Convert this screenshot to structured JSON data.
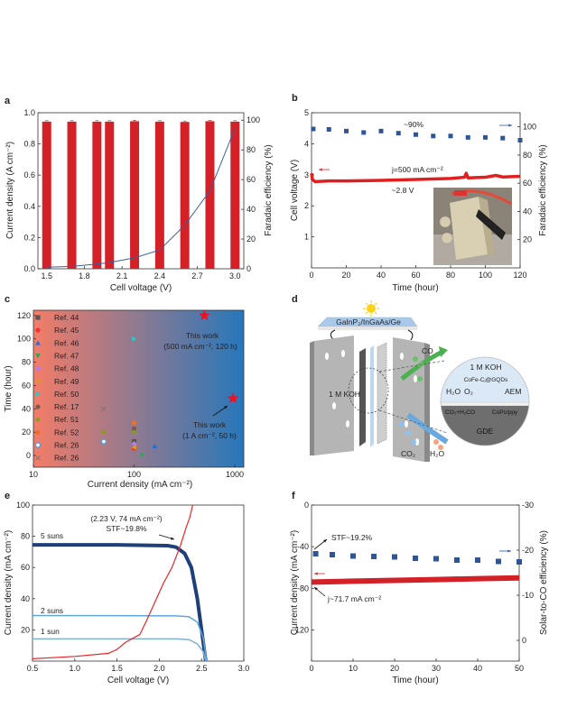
{
  "panels": {
    "a": "a",
    "b": "b",
    "c": "c",
    "d": "d",
    "e": "e",
    "f": "f"
  },
  "chart_data": [
    {
      "panel": "a",
      "type": "bar+line",
      "xlabel": "Cell voltage (V)",
      "ylabel": "Current density (A cm⁻²)",
      "y2label": "Faradaic efficiency (%)",
      "xlim": [
        1.43,
        3.07
      ],
      "ylim": [
        0,
        1.0
      ],
      "y2lim": [
        0,
        105
      ],
      "xticks": [
        "1.5",
        "1.8",
        "2.1",
        "2.4",
        "2.7",
        "3.0"
      ],
      "yticks": [
        "0.0",
        "0.2",
        "0.4",
        "0.6",
        "0.8",
        "1.0"
      ],
      "y2ticks": [
        "0",
        "20",
        "40",
        "60",
        "80",
        "100"
      ],
      "bars": {
        "axis": "right",
        "color": "#d42027",
        "x": [
          1.5,
          1.7,
          1.9,
          2.0,
          2.2,
          2.4,
          2.6,
          2.8,
          3.0
        ],
        "values": [
          99,
          99,
          99,
          99,
          99.3,
          99,
          98.8,
          99.3,
          99
        ]
      },
      "line": {
        "axis": "left",
        "color": "#3a5fa0",
        "x": [
          1.5,
          1.7,
          1.9,
          2.0,
          2.2,
          2.4,
          2.6,
          2.8,
          3.0
        ],
        "y": [
          0.01,
          0.015,
          0.03,
          0.04,
          0.07,
          0.12,
          0.28,
          0.5,
          0.9
        ]
      }
    },
    {
      "panel": "b",
      "type": "line+scatter",
      "xlabel": "Time (hour)",
      "ylabel": "Cell voltage (V)",
      "y2label": "Faradaic efficiency (%)",
      "xlim": [
        0,
        120
      ],
      "ylim": [
        0,
        5
      ],
      "y2lim": [
        0,
        110
      ],
      "xticks": [
        "0",
        "20",
        "40",
        "60",
        "80",
        "100",
        "120"
      ],
      "yticks": [
        "1",
        "2",
        "3",
        "4",
        "5"
      ],
      "y2ticks": [
        "20",
        "40",
        "60",
        "80",
        "100"
      ],
      "scatter": {
        "axis": "right",
        "color": "#2f5597",
        "x": [
          1,
          10,
          20,
          30,
          40,
          50,
          60,
          70,
          80,
          90,
          100,
          110,
          120
        ],
        "y": [
          98.5,
          98.2,
          97,
          96,
          97,
          95.5,
          94.5,
          93.5,
          93.5,
          92.5,
          92.5,
          92,
          90.5
        ]
      },
      "line": {
        "axis": "left",
        "color": "#e02020",
        "x": [
          0,
          0.5,
          2,
          10,
          20,
          40,
          60,
          80,
          88,
          89,
          90,
          100,
          106,
          110,
          120
        ],
        "y": [
          3.05,
          2.85,
          2.78,
          2.8,
          2.8,
          2.82,
          2.85,
          2.88,
          2.92,
          3.05,
          2.9,
          2.92,
          2.98,
          2.93,
          2.95
        ]
      },
      "annotations": [
        "~90%",
        "j=500 mA cm⁻²",
        "~2.8 V"
      ]
    },
    {
      "panel": "c",
      "type": "scatter",
      "xlabel": "Current density (mA cm⁻²)",
      "ylabel": "Time (hour)",
      "xscale": "log",
      "xlim": [
        10,
        1230
      ],
      "ylim": [
        -10,
        124.5
      ],
      "xticks": [
        "10",
        "100",
        "1000"
      ],
      "yticks": [
        "0",
        "20",
        "40",
        "60",
        "80",
        "100",
        "120"
      ],
      "background": {
        "left": "#f47c68",
        "right": "#2677bb"
      },
      "legend_placement": "left",
      "series": [
        {
          "name": "Ref. 44",
          "marker": "square",
          "color": "#555555",
          "x": [
            100
          ],
          "y": [
            12
          ]
        },
        {
          "name": "Ref. 45",
          "marker": "circle",
          "color": "#ee3333",
          "x": [
            100
          ],
          "y": [
            6
          ]
        },
        {
          "name": "Ref. 46",
          "marker": "triangle-up",
          "color": "#1f6fe0",
          "x": [
            160
          ],
          "y": [
            8
          ]
        },
        {
          "name": "Ref. 47",
          "marker": "triangle-down",
          "color": "#22aa55",
          "x": [
            120
          ],
          "y": [
            0
          ]
        },
        {
          "name": "Ref. 48",
          "marker": "diamond",
          "color": "#bb77ee",
          "x": [
            100
          ],
          "y": [
            10
          ]
        },
        {
          "name": "Ref. 49",
          "marker": "triangle-left",
          "color": "#d4a017",
          "x": [
            100
          ],
          "y": [
            7
          ]
        },
        {
          "name": "Ref. 50",
          "marker": "triangle-right",
          "color": "#22cccc",
          "x": [
            100
          ],
          "y": [
            100
          ]
        },
        {
          "name": "Ref. 17",
          "marker": "circle",
          "color": "#7a5a55",
          "x": [
            100
          ],
          "y": [
            23
          ]
        },
        {
          "name": "Ref. 51",
          "marker": "star",
          "color": "#889922",
          "x": [
            100,
            50
          ],
          "y": [
            20,
            20
          ]
        },
        {
          "name": "Ref. 52",
          "marker": "circle",
          "color": "#f07020",
          "x": [
            100
          ],
          "y": [
            28
          ]
        },
        {
          "name": "Ref. 26",
          "marker": "circle-open",
          "color": "#5b9bd5",
          "x": [
            50
          ],
          "y": [
            12
          ]
        },
        {
          "name": "Ref. 26",
          "marker": "x",
          "color": "#8a7070",
          "x": [
            50
          ],
          "y": [
            40
          ]
        },
        {
          "name": "This work",
          "marker": "big-star",
          "color": "#ee1122",
          "x": [
            500,
            960
          ],
          "y": [
            120,
            49
          ],
          "legend": false
        }
      ],
      "annotations": [
        "This work",
        "(500 mA cm⁻², 120 h)",
        "This work",
        "(1 A cm⁻², 50 h)"
      ]
    },
    {
      "panel": "e",
      "type": "line",
      "xlabel": "Cell voltage (V)",
      "ylabel": "Current density (mA cm⁻²)",
      "xlim": [
        0.5,
        3.0
      ],
      "ylim": [
        0,
        100
      ],
      "xticks": [
        "0.5",
        "1.0",
        "1.5",
        "2.0",
        "2.5",
        "3.0"
      ],
      "yticks": [
        "20",
        "40",
        "60",
        "80",
        "100"
      ],
      "series": [
        {
          "name": "5 suns",
          "color": "#1f3f7a",
          "width": 4,
          "x": [
            0.5,
            1.5,
            2.1,
            2.2,
            2.3,
            2.38,
            2.45,
            2.5,
            2.55
          ],
          "y": [
            74.5,
            74.5,
            74,
            73,
            69,
            60,
            40,
            20,
            0
          ]
        },
        {
          "name": "2 suns",
          "color": "#5ea7dd",
          "width": 1.5,
          "x": [
            0.5,
            2.2,
            2.35,
            2.45,
            2.52,
            2.56
          ],
          "y": [
            29.2,
            29,
            28.5,
            25,
            15,
            0
          ]
        },
        {
          "name": "1 sun",
          "color": "#7fb0d0",
          "width": 1.5,
          "x": [
            0.5,
            2.2,
            2.35,
            2.45,
            2.52,
            2.55
          ],
          "y": [
            14.2,
            14.2,
            13.8,
            11,
            6,
            0
          ]
        },
        {
          "color": "#e8262a",
          "width": 1.2,
          "x": [
            0.5,
            1.0,
            1.4,
            1.5,
            1.6,
            1.7,
            1.77,
            1.85,
            1.95,
            2.05,
            2.15,
            2.25,
            2.32,
            2.36,
            2.4
          ],
          "y": [
            1.5,
            3,
            5,
            7.5,
            12,
            15,
            17,
            26,
            38,
            50,
            60,
            74,
            86,
            92,
            101
          ]
        }
      ],
      "annotations": [
        "(2.23 V, 74 mA cm⁻²)",
        "STF~19.8%"
      ]
    },
    {
      "panel": "f",
      "type": "line+scatter",
      "xlabel": "Time (hour)",
      "ylabel": "Current density (mA cm⁻²)",
      "y2label": "Solar-to-CO efficiency (%)",
      "xlim": [
        0,
        50
      ],
      "ylim": [
        -150,
        0
      ],
      "y2lim": [
        4.6,
        -30
      ],
      "xticks": [
        "0",
        "10",
        "20",
        "30",
        "40",
        "50"
      ],
      "yticks": [
        "-120",
        "-80",
        "-40",
        "0"
      ],
      "y2ticks": [
        "0",
        "-10",
        "-20",
        "-30"
      ],
      "scatter": {
        "axis": "right",
        "color": "#2f5597",
        "x": [
          1,
          5,
          10,
          15,
          20,
          25,
          30,
          35,
          40,
          45,
          50
        ],
        "y": [
          -19.2,
          -19.0,
          -18.7,
          -18.6,
          -18.5,
          -18.2,
          -18.1,
          -17.8,
          -17.8,
          -17.5,
          -17.4
        ]
      },
      "line": {
        "axis": "left",
        "color": "#d42027",
        "x": [
          0,
          10,
          20,
          30,
          40,
          50
        ],
        "y": [
          -74,
          -73.2,
          -72.4,
          -71.6,
          -70.8,
          -70
        ]
      },
      "annotations": [
        "STF~19.2%",
        "j~71.7 mA cm⁻²"
      ]
    }
  ],
  "diagram_d": {
    "solar_cell": "GaInP₂/InGaAs/Ge",
    "product": "CO",
    "electrolyte": "1 M KOH",
    "inset_electrolyte": "1 M KOH",
    "catalyst_anode": "CoFe-Cⱼ@GQDs",
    "h2o": "H₂O",
    "o2": "O₂",
    "aem": "AEM",
    "reaction": "CO₂+H₂CO",
    "catalyst_cathode": "CoPc/ppy",
    "gde": "GDE",
    "feed_co2": "CO₂",
    "feed_h2o": "H₂O"
  }
}
